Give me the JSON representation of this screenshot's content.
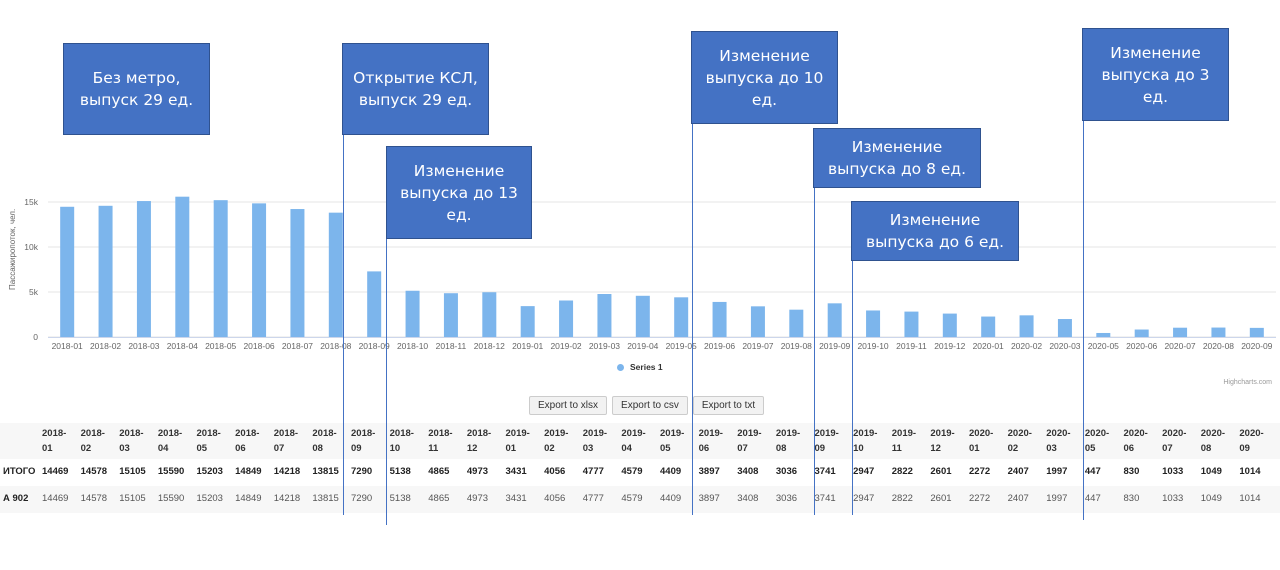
{
  "chart_data": {
    "type": "bar",
    "categories": [
      "2018-01",
      "2018-02",
      "2018-03",
      "2018-04",
      "2018-05",
      "2018-06",
      "2018-07",
      "2018-08",
      "2018-09",
      "2018-10",
      "2018-11",
      "2018-12",
      "2019-01",
      "2019-02",
      "2019-03",
      "2019-04",
      "2019-05",
      "2019-06",
      "2019-07",
      "2019-08",
      "2019-09",
      "2019-10",
      "2019-11",
      "2019-12",
      "2020-01",
      "2020-02",
      "2020-03",
      "2020-05",
      "2020-06",
      "2020-07",
      "2020-08",
      "2020-09"
    ],
    "series": [
      {
        "name": "Series 1",
        "values": [
          14469,
          14578,
          15105,
          15590,
          15203,
          14849,
          14218,
          13815,
          7290,
          5138,
          4865,
          4973,
          3431,
          4056,
          4777,
          4579,
          4409,
          3897,
          3408,
          3036,
          3741,
          2947,
          2822,
          2601,
          2272,
          2407,
          1997,
          447,
          830,
          1033,
          1049,
          1014
        ]
      }
    ],
    "ylabel": "Пассажиропоток, чел.",
    "yticks": [
      "0",
      "5k",
      "10k",
      "15k"
    ],
    "ylim": [
      0,
      16000
    ],
    "legend": "bottom-center",
    "bar_color": "#7cb5ec",
    "grid": true
  },
  "annotations": [
    {
      "text": "Без метро,\nвыпуск 29 ед.",
      "category": "2018-01"
    },
    {
      "text": "Открытие КСЛ,\nвыпуск 29 ед.",
      "category": "2018-09"
    },
    {
      "text": "Изменение\nвыпуска до 13\nед.",
      "category": "2018-10"
    },
    {
      "text": "Изменение\nвыпуска до 10\nед.",
      "category": "2019-06"
    },
    {
      "text": "Изменение\nвыпуска до 8 ед.",
      "category": "2019-09"
    },
    {
      "text": "Изменение\nвыпуска до 6 ед.",
      "category": "2019-10"
    },
    {
      "text": "Изменение\nвыпуска до 3\nед.",
      "category": "2020-05"
    }
  ],
  "annotation_color": "#4472c4",
  "legend_label": "Series 1",
  "credits": "Highcharts.com",
  "export_buttons": [
    "Export to xlsx",
    "Export to csv",
    "Export to txt"
  ],
  "table": {
    "headers": [
      [
        "2018-",
        "01"
      ],
      [
        "2018-",
        "02"
      ],
      [
        "2018-",
        "03"
      ],
      [
        "2018-",
        "04"
      ],
      [
        "2018-",
        "05"
      ],
      [
        "2018-",
        "06"
      ],
      [
        "2018-",
        "07"
      ],
      [
        "2018-",
        "08"
      ],
      [
        "2018-",
        "09"
      ],
      [
        "2018-",
        "10"
      ],
      [
        "2018-",
        "11"
      ],
      [
        "2018-",
        "12"
      ],
      [
        "2019-",
        "01"
      ],
      [
        "2019-",
        "02"
      ],
      [
        "2019-",
        "03"
      ],
      [
        "2019-",
        "04"
      ],
      [
        "2019-",
        "05"
      ],
      [
        "2019-",
        "06"
      ],
      [
        "2019-",
        "07"
      ],
      [
        "2019-",
        "08"
      ],
      [
        "2019-",
        "09"
      ],
      [
        "2019-",
        "10"
      ],
      [
        "2019-",
        "11"
      ],
      [
        "2019-",
        "12"
      ],
      [
        "2020-",
        "01"
      ],
      [
        "2020-",
        "02"
      ],
      [
        "2020-",
        "03"
      ],
      [
        "2020-",
        "05"
      ],
      [
        "2020-",
        "06"
      ],
      [
        "2020-",
        "07"
      ],
      [
        "2020-",
        "08"
      ],
      [
        "2020-",
        "09"
      ]
    ],
    "rows": [
      {
        "label": "ИТОГО",
        "bold": true,
        "values": [
          "14469",
          "14578",
          "15105",
          "15590",
          "15203",
          "14849",
          "14218",
          "13815",
          "7290",
          "5138",
          "4865",
          "4973",
          "3431",
          "4056",
          "4777",
          "4579",
          "4409",
          "3897",
          "3408",
          "3036",
          "3741",
          "2947",
          "2822",
          "2601",
          "2272",
          "2407",
          "1997",
          "447",
          "830",
          "1033",
          "1049",
          "1014"
        ]
      },
      {
        "label": "А 902",
        "bold": false,
        "values": [
          "14469",
          "14578",
          "15105",
          "15590",
          "15203",
          "14849",
          "14218",
          "13815",
          "7290",
          "5138",
          "4865",
          "4973",
          "3431",
          "4056",
          "4777",
          "4579",
          "4409",
          "3897",
          "3408",
          "3036",
          "3741",
          "2947",
          "2822",
          "2601",
          "2272",
          "2407",
          "1997",
          "447",
          "830",
          "1033",
          "1049",
          "1014"
        ]
      }
    ]
  }
}
